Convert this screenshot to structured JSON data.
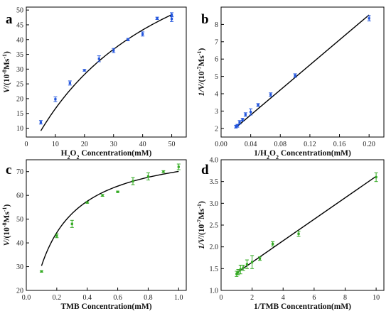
{
  "chart_data": [
    {
      "panel_label": "a",
      "type": "scatter",
      "fit": "Michaelis-Menten curve",
      "xlabel": "H2O2 Concentration(mM)",
      "xlabel_parts": [
        "H",
        "2",
        "O",
        "2",
        " Concentration(mM)"
      ],
      "ylabel": "V/(10-8Ms-1)",
      "ylabel_parts": [
        "V",
        "/(10",
        "-8",
        "Ms",
        "-1",
        ")"
      ],
      "xlim": [
        0,
        55
      ],
      "ylim": [
        7,
        51
      ],
      "xticks": [
        0,
        10,
        20,
        30,
        40,
        50
      ],
      "yticks": [
        10,
        15,
        20,
        25,
        30,
        35,
        40,
        45,
        50
      ],
      "series": [
        {
          "color": "#2255dd",
          "x": [
            5,
            10,
            15,
            20,
            25,
            30,
            35,
            40,
            45,
            50,
            50
          ],
          "y": [
            12,
            19.8,
            25.3,
            29.6,
            33.5,
            36.3,
            40,
            41.9,
            47.2,
            48.4,
            47
          ],
          "err": [
            0.6,
            0.8,
            0.7,
            0.3,
            1.0,
            0.7,
            0.4,
            0.7,
            0.4,
            0.7,
            0.9
          ]
        }
      ],
      "fit_line": {
        "vmax": 93,
        "km": 46
      }
    },
    {
      "panel_label": "b",
      "type": "scatter",
      "fit": "linear",
      "xlabel": "1/H2O2 Concentration(mM)",
      "xlabel_parts": [
        "1/H",
        "2",
        "O",
        "2",
        " Concentration(mM)"
      ],
      "ylabel": "1/V/(10-7Ms-1)",
      "ylabel_parts": [
        "1/V",
        "/(10",
        "-7",
        "Ms",
        "-1",
        ")"
      ],
      "xlim": [
        0,
        0.22
      ],
      "ylim": [
        1.5,
        9
      ],
      "xticks": [
        0.0,
        0.04,
        0.08,
        0.12,
        0.16,
        0.2
      ],
      "xtick_labels": [
        "0.00",
        "0.04",
        "0.08",
        "0.12",
        "0.16",
        "0.20"
      ],
      "yticks": [
        2,
        3,
        4,
        5,
        6,
        7,
        8
      ],
      "series": [
        {
          "color": "#2255dd",
          "x": [
            0.02,
            0.022,
            0.025,
            0.029,
            0.033,
            0.04,
            0.05,
            0.067,
            0.1,
            0.2
          ],
          "y": [
            2.1,
            2.15,
            2.35,
            2.5,
            2.8,
            2.95,
            3.35,
            3.95,
            5.05,
            8.35
          ],
          "err": [
            0.08,
            0.08,
            0.1,
            0.08,
            0.1,
            0.18,
            0.08,
            0.1,
            0.1,
            0.15
          ]
        }
      ],
      "fit_line": {
        "x": [
          0.02,
          0.2
        ],
        "y": [
          2.05,
          8.55
        ]
      }
    },
    {
      "panel_label": "c",
      "type": "scatter",
      "fit": "Michaelis-Menten curve",
      "xlabel": "TMB Concentration(mM)",
      "xlabel_parts": [
        "TMB Concentration(mM)"
      ],
      "ylabel": "V/(10-8Ms-1)",
      "ylabel_parts": [
        "V",
        "/(10",
        "-8",
        "Ms",
        "-1",
        ")"
      ],
      "xlim": [
        0,
        1.05
      ],
      "ylim": [
        20,
        75
      ],
      "xticks": [
        0.0,
        0.2,
        0.4,
        0.6,
        0.8,
        1.0
      ],
      "xtick_labels": [
        "0.0",
        "0.2",
        "0.4",
        "0.6",
        "0.8",
        "1.0"
      ],
      "yticks": [
        20,
        30,
        40,
        50,
        60,
        70
      ],
      "series": [
        {
          "color": "#33aa22",
          "x": [
            0.1,
            0.2,
            0.3,
            0.4,
            0.5,
            0.6,
            0.7,
            0.8,
            0.9,
            1.0
          ],
          "y": [
            28,
            43,
            48,
            57,
            60,
            61.5,
            66,
            68,
            70,
            72
          ],
          "err": [
            0.3,
            0.8,
            1.5,
            0.3,
            0.4,
            0.3,
            1.5,
            1.5,
            0.4,
            1.2
          ]
        }
      ],
      "fit_line": {
        "vmax": 82,
        "km": 0.17
      }
    },
    {
      "panel_label": "d",
      "type": "scatter",
      "fit": "linear",
      "xlabel": "1/TMB Concentration(mM)",
      "xlabel_parts": [
        "1/TMB Concentration(mM)"
      ],
      "ylabel": "1/V/(10-7Ms-1)",
      "ylabel_parts": [
        "1/V",
        "/(10",
        "-7",
        "Ms",
        "-1",
        ")"
      ],
      "xlim": [
        0,
        10.5
      ],
      "ylim": [
        1.0,
        4.0
      ],
      "xticks": [
        0,
        2,
        4,
        6,
        8,
        10
      ],
      "yticks": [
        1.0,
        1.5,
        2.0,
        2.5,
        3.0,
        3.5,
        4.0
      ],
      "ytick_labels": [
        "1.0",
        "1.5",
        "2.0",
        "2.5",
        "3.0",
        "3.5",
        "4.0"
      ],
      "series": [
        {
          "color": "#33aa22",
          "x": [
            1.0,
            1.1,
            1.25,
            1.43,
            1.67,
            2.0,
            2.5,
            3.33,
            5.0,
            10.0
          ],
          "y": [
            1.38,
            1.42,
            1.48,
            1.52,
            1.6,
            1.65,
            1.73,
            2.07,
            2.3,
            3.6
          ],
          "err": [
            0.06,
            0.06,
            0.1,
            0.06,
            0.1,
            0.15,
            0.04,
            0.05,
            0.06,
            0.1
          ]
        }
      ],
      "fit_line": {
        "x": [
          1.0,
          10.0
        ],
        "y": [
          1.4,
          3.62
        ]
      }
    }
  ]
}
